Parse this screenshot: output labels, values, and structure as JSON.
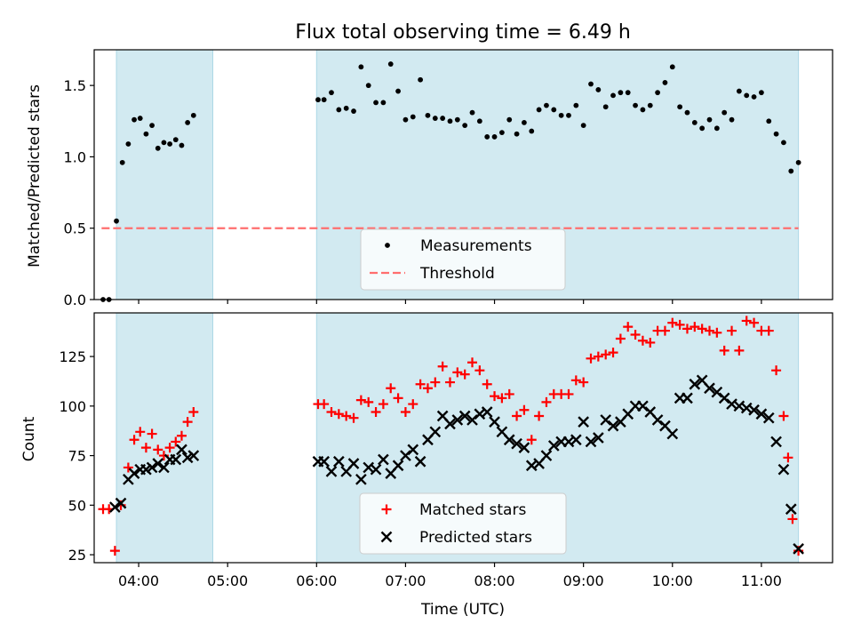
{
  "chart_data": [
    {
      "type": "scatter",
      "title": "Flux total observing time = 6.49 h",
      "xlabel": "",
      "ylabel": "Matched/Predicted stars",
      "x_unit": "time (UTC)",
      "xlim": [
        "03:30",
        "11:48"
      ],
      "ylim": [
        0,
        1.75
      ],
      "yticks": [
        0.0,
        0.5,
        1.0,
        1.5
      ],
      "ytick_labels": [
        "0.0",
        "0.5",
        "1.0",
        "1.5"
      ],
      "grid": false,
      "legend_position": "bottom-center",
      "shaded_intervals": [
        [
          "03:45",
          "04:50"
        ],
        [
          "06:00",
          "11:25"
        ]
      ],
      "shade_color": "#add8e6",
      "threshold": {
        "name": "Threshold",
        "value": 0.5,
        "x_range": [
          "03:35",
          "11:25"
        ],
        "color": "#ff6e6e"
      },
      "series": [
        {
          "name": "Measurements",
          "color": "#000000",
          "marker": "dot",
          "points": [
            [
              "03:36",
              0.0
            ],
            [
              "03:40",
              0.0
            ],
            [
              "03:45",
              0.55
            ],
            [
              "03:49",
              0.96
            ],
            [
              "03:53",
              1.09
            ],
            [
              "03:57",
              1.26
            ],
            [
              "04:01",
              1.27
            ],
            [
              "04:05",
              1.16
            ],
            [
              "04:09",
              1.22
            ],
            [
              "04:13",
              1.06
            ],
            [
              "04:17",
              1.1
            ],
            [
              "04:21",
              1.09
            ],
            [
              "04:25",
              1.12
            ],
            [
              "04:29",
              1.08
            ],
            [
              "04:33",
              1.24
            ],
            [
              "04:37",
              1.29
            ],
            [
              "06:01",
              1.4
            ],
            [
              "06:05",
              1.4
            ],
            [
              "06:10",
              1.45
            ],
            [
              "06:15",
              1.33
            ],
            [
              "06:20",
              1.34
            ],
            [
              "06:25",
              1.32
            ],
            [
              "06:30",
              1.63
            ],
            [
              "06:35",
              1.5
            ],
            [
              "06:40",
              1.38
            ],
            [
              "06:45",
              1.38
            ],
            [
              "06:50",
              1.65
            ],
            [
              "06:55",
              1.46
            ],
            [
              "07:00",
              1.26
            ],
            [
              "07:05",
              1.28
            ],
            [
              "07:10",
              1.54
            ],
            [
              "07:15",
              1.29
            ],
            [
              "07:20",
              1.27
            ],
            [
              "07:25",
              1.27
            ],
            [
              "07:30",
              1.25
            ],
            [
              "07:35",
              1.26
            ],
            [
              "07:40",
              1.22
            ],
            [
              "07:45",
              1.31
            ],
            [
              "07:50",
              1.25
            ],
            [
              "07:55",
              1.14
            ],
            [
              "08:00",
              1.14
            ],
            [
              "08:05",
              1.17
            ],
            [
              "08:10",
              1.26
            ],
            [
              "08:15",
              1.16
            ],
            [
              "08:20",
              1.24
            ],
            [
              "08:25",
              1.18
            ],
            [
              "08:30",
              1.33
            ],
            [
              "08:35",
              1.36
            ],
            [
              "08:40",
              1.33
            ],
            [
              "08:45",
              1.29
            ],
            [
              "08:50",
              1.29
            ],
            [
              "08:55",
              1.36
            ],
            [
              "09:00",
              1.22
            ],
            [
              "09:05",
              1.51
            ],
            [
              "09:10",
              1.47
            ],
            [
              "09:15",
              1.35
            ],
            [
              "09:20",
              1.43
            ],
            [
              "09:25",
              1.45
            ],
            [
              "09:30",
              1.45
            ],
            [
              "09:35",
              1.36
            ],
            [
              "09:40",
              1.33
            ],
            [
              "09:45",
              1.36
            ],
            [
              "09:50",
              1.45
            ],
            [
              "09:55",
              1.52
            ],
            [
              "10:00",
              1.63
            ],
            [
              "10:05",
              1.35
            ],
            [
              "10:10",
              1.31
            ],
            [
              "10:15",
              1.24
            ],
            [
              "10:20",
              1.2
            ],
            [
              "10:25",
              1.26
            ],
            [
              "10:30",
              1.2
            ],
            [
              "10:35",
              1.31
            ],
            [
              "10:40",
              1.26
            ],
            [
              "10:45",
              1.46
            ],
            [
              "10:50",
              1.43
            ],
            [
              "10:55",
              1.42
            ],
            [
              "11:00",
              1.45
            ],
            [
              "11:05",
              1.25
            ],
            [
              "11:10",
              1.16
            ],
            [
              "11:15",
              1.1
            ],
            [
              "11:20",
              0.9
            ],
            [
              "11:25",
              0.96
            ]
          ]
        }
      ],
      "legend": [
        "Measurements",
        "Threshold"
      ]
    },
    {
      "type": "scatter",
      "title": "",
      "xlabel": "Time (UTC)",
      "ylabel": "Count",
      "x_unit": "time (UTC)",
      "xlim": [
        "03:30",
        "11:48"
      ],
      "ylim": [
        21,
        147
      ],
      "xticks": [
        "04:00",
        "05:00",
        "06:00",
        "07:00",
        "08:00",
        "09:00",
        "10:00",
        "11:00"
      ],
      "yticks": [
        25,
        50,
        75,
        100,
        125
      ],
      "ytick_labels": [
        "25",
        "50",
        "75",
        "100",
        "125"
      ],
      "grid": false,
      "legend_position": "bottom-center",
      "shaded_intervals": [
        [
          "03:45",
          "04:50"
        ],
        [
          "06:00",
          "11:25"
        ]
      ],
      "shade_color": "#add8e6",
      "series": [
        {
          "name": "Matched stars",
          "color": "#ff0000",
          "marker": "plus",
          "points": [
            [
              "03:36",
              48
            ],
            [
              "03:40",
              48
            ],
            [
              "03:44",
              27
            ],
            [
              "03:48",
              50
            ],
            [
              "03:53",
              69
            ],
            [
              "03:57",
              83
            ],
            [
              "04:01",
              87
            ],
            [
              "04:05",
              79
            ],
            [
              "04:09",
              86
            ],
            [
              "04:13",
              78
            ],
            [
              "04:17",
              75
            ],
            [
              "04:21",
              79
            ],
            [
              "04:25",
              82
            ],
            [
              "04:29",
              85
            ],
            [
              "04:33",
              92
            ],
            [
              "04:37",
              97
            ],
            [
              "06:01",
              101
            ],
            [
              "06:05",
              101
            ],
            [
              "06:10",
              97
            ],
            [
              "06:15",
              96
            ],
            [
              "06:20",
              95
            ],
            [
              "06:25",
              94
            ],
            [
              "06:30",
              103
            ],
            [
              "06:35",
              102
            ],
            [
              "06:40",
              97
            ],
            [
              "06:45",
              101
            ],
            [
              "06:50",
              109
            ],
            [
              "06:55",
              104
            ],
            [
              "07:00",
              97
            ],
            [
              "07:05",
              101
            ],
            [
              "07:10",
              111
            ],
            [
              "07:15",
              109
            ],
            [
              "07:20",
              112
            ],
            [
              "07:25",
              120
            ],
            [
              "07:30",
              112
            ],
            [
              "07:35",
              117
            ],
            [
              "07:40",
              116
            ],
            [
              "07:45",
              122
            ],
            [
              "07:50",
              118
            ],
            [
              "07:55",
              111
            ],
            [
              "08:00",
              105
            ],
            [
              "08:05",
              104
            ],
            [
              "08:10",
              106
            ],
            [
              "08:15",
              95
            ],
            [
              "08:20",
              98
            ],
            [
              "08:25",
              83
            ],
            [
              "08:30",
              95
            ],
            [
              "08:35",
              102
            ],
            [
              "08:40",
              106
            ],
            [
              "08:45",
              106
            ],
            [
              "08:50",
              106
            ],
            [
              "08:55",
              113
            ],
            [
              "09:00",
              112
            ],
            [
              "09:05",
              124
            ],
            [
              "09:10",
              125
            ],
            [
              "09:15",
              126
            ],
            [
              "09:20",
              127
            ],
            [
              "09:25",
              134
            ],
            [
              "09:30",
              140
            ],
            [
              "09:35",
              136
            ],
            [
              "09:40",
              133
            ],
            [
              "09:45",
              132
            ],
            [
              "09:50",
              138
            ],
            [
              "09:55",
              138
            ],
            [
              "10:00",
              142
            ],
            [
              "10:05",
              141
            ],
            [
              "10:10",
              139
            ],
            [
              "10:15",
              140
            ],
            [
              "10:20",
              139
            ],
            [
              "10:25",
              138
            ],
            [
              "10:30",
              137
            ],
            [
              "10:35",
              128
            ],
            [
              "10:40",
              138
            ],
            [
              "10:45",
              128
            ],
            [
              "10:50",
              143
            ],
            [
              "10:55",
              142
            ],
            [
              "11:00",
              138
            ],
            [
              "11:05",
              138
            ],
            [
              "11:10",
              118
            ],
            [
              "11:15",
              95
            ],
            [
              "11:18",
              74
            ],
            [
              "11:21",
              43
            ],
            [
              "11:25",
              27
            ]
          ]
        },
        {
          "name": "Predicted stars",
          "color": "#000000",
          "marker": "x",
          "points": [
            [
              "03:44",
              49
            ],
            [
              "03:48",
              51
            ],
            [
              "03:53",
              63
            ],
            [
              "03:57",
              66
            ],
            [
              "04:01",
              68
            ],
            [
              "04:05",
              68
            ],
            [
              "04:09",
              69
            ],
            [
              "04:13",
              71
            ],
            [
              "04:17",
              69
            ],
            [
              "04:21",
              73
            ],
            [
              "04:25",
              73
            ],
            [
              "04:29",
              78
            ],
            [
              "04:33",
              74
            ],
            [
              "04:37",
              75
            ],
            [
              "06:01",
              72
            ],
            [
              "06:05",
              72
            ],
            [
              "06:10",
              67
            ],
            [
              "06:15",
              72
            ],
            [
              "06:20",
              67
            ],
            [
              "06:25",
              71
            ],
            [
              "06:30",
              63
            ],
            [
              "06:35",
              69
            ],
            [
              "06:40",
              68
            ],
            [
              "06:45",
              73
            ],
            [
              "06:50",
              66
            ],
            [
              "06:55",
              70
            ],
            [
              "07:00",
              75
            ],
            [
              "07:05",
              78
            ],
            [
              "07:10",
              72
            ],
            [
              "07:15",
              83
            ],
            [
              "07:20",
              87
            ],
            [
              "07:25",
              95
            ],
            [
              "07:30",
              91
            ],
            [
              "07:35",
              93
            ],
            [
              "07:40",
              95
            ],
            [
              "07:45",
              93
            ],
            [
              "07:50",
              96
            ],
            [
              "07:55",
              97
            ],
            [
              "08:00",
              92
            ],
            [
              "08:05",
              87
            ],
            [
              "08:10",
              83
            ],
            [
              "08:15",
              81
            ],
            [
              "08:20",
              79
            ],
            [
              "08:25",
              70
            ],
            [
              "08:30",
              71
            ],
            [
              "08:35",
              75
            ],
            [
              "08:40",
              80
            ],
            [
              "08:45",
              82
            ],
            [
              "08:50",
              82
            ],
            [
              "08:55",
              83
            ],
            [
              "09:00",
              92
            ],
            [
              "09:05",
              82
            ],
            [
              "09:10",
              84
            ],
            [
              "09:15",
              93
            ],
            [
              "09:20",
              90
            ],
            [
              "09:25",
              92
            ],
            [
              "09:30",
              96
            ],
            [
              "09:35",
              100
            ],
            [
              "09:40",
              100
            ],
            [
              "09:45",
              97
            ],
            [
              "09:50",
              93
            ],
            [
              "09:55",
              90
            ],
            [
              "10:00",
              86
            ],
            [
              "10:05",
              104
            ],
            [
              "10:10",
              104
            ],
            [
              "10:15",
              111
            ],
            [
              "10:20",
              113
            ],
            [
              "10:25",
              109
            ],
            [
              "10:30",
              107
            ],
            [
              "10:35",
              104
            ],
            [
              "10:40",
              101
            ],
            [
              "10:45",
              100
            ],
            [
              "10:50",
              99
            ],
            [
              "10:55",
              98
            ],
            [
              "11:00",
              96
            ],
            [
              "11:05",
              94
            ],
            [
              "11:10",
              82
            ],
            [
              "11:15",
              68
            ],
            [
              "11:20",
              48
            ],
            [
              "11:25",
              28
            ]
          ]
        }
      ],
      "legend": [
        "Matched stars",
        "Predicted stars"
      ]
    }
  ]
}
